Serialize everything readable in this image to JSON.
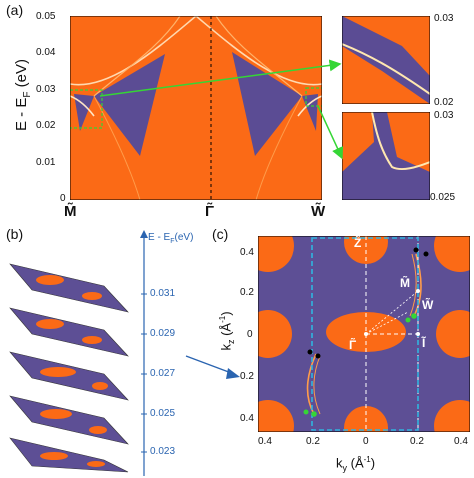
{
  "panel_a": {
    "label": "(a)",
    "ylabel": "E - E",
    "ylabel_sub": "F",
    "ylabel_unit": " (eV)",
    "yticks": [
      "0.05",
      "0.04",
      "0.03",
      "0.02",
      "0.01",
      "0"
    ],
    "xticks": [
      "M̃",
      "Γ̃",
      "W̃"
    ],
    "inset_top_ticks": [
      "0.03",
      "0.02"
    ],
    "inset_bottom_ticks": [
      "0.03",
      "0.025"
    ]
  },
  "panel_b": {
    "label": "(b)",
    "axis_title": "E - E",
    "axis_title_sub": "F",
    "axis_title_unit": "(eV)",
    "energies": [
      "0.031",
      "0.029",
      "0.027",
      "0.025",
      "0.023"
    ]
  },
  "panel_c": {
    "label": "(c)",
    "ylabel_k": "k",
    "ylabel_sub": "z",
    "ylabel_unit": " (Å",
    "ylabel_exp": "-1",
    "ylabel_close": ")",
    "xlabel_k": "k",
    "xlabel_sub": "y",
    "xlabel_unit": " (Å",
    "xlabel_exp": "-1",
    "xlabel_close": ")",
    "yticks": [
      "0.4",
      "0.2",
      "0",
      "0.2",
      "0.4"
    ],
    "xticks": [
      "0.4",
      "0.2",
      "0",
      "0.2",
      "0.4"
    ],
    "point_labels": [
      "Z̃",
      "M̃",
      "W̃",
      "Γ̃",
      "Ĩ"
    ]
  },
  "colors": {
    "orange": "#ff7a1c",
    "dark_orange": "#e2561a",
    "purple": "#5d4f95",
    "cyan_dash": "#30b4e0",
    "green": "#35d635",
    "blue_text": "#2a64b0"
  }
}
